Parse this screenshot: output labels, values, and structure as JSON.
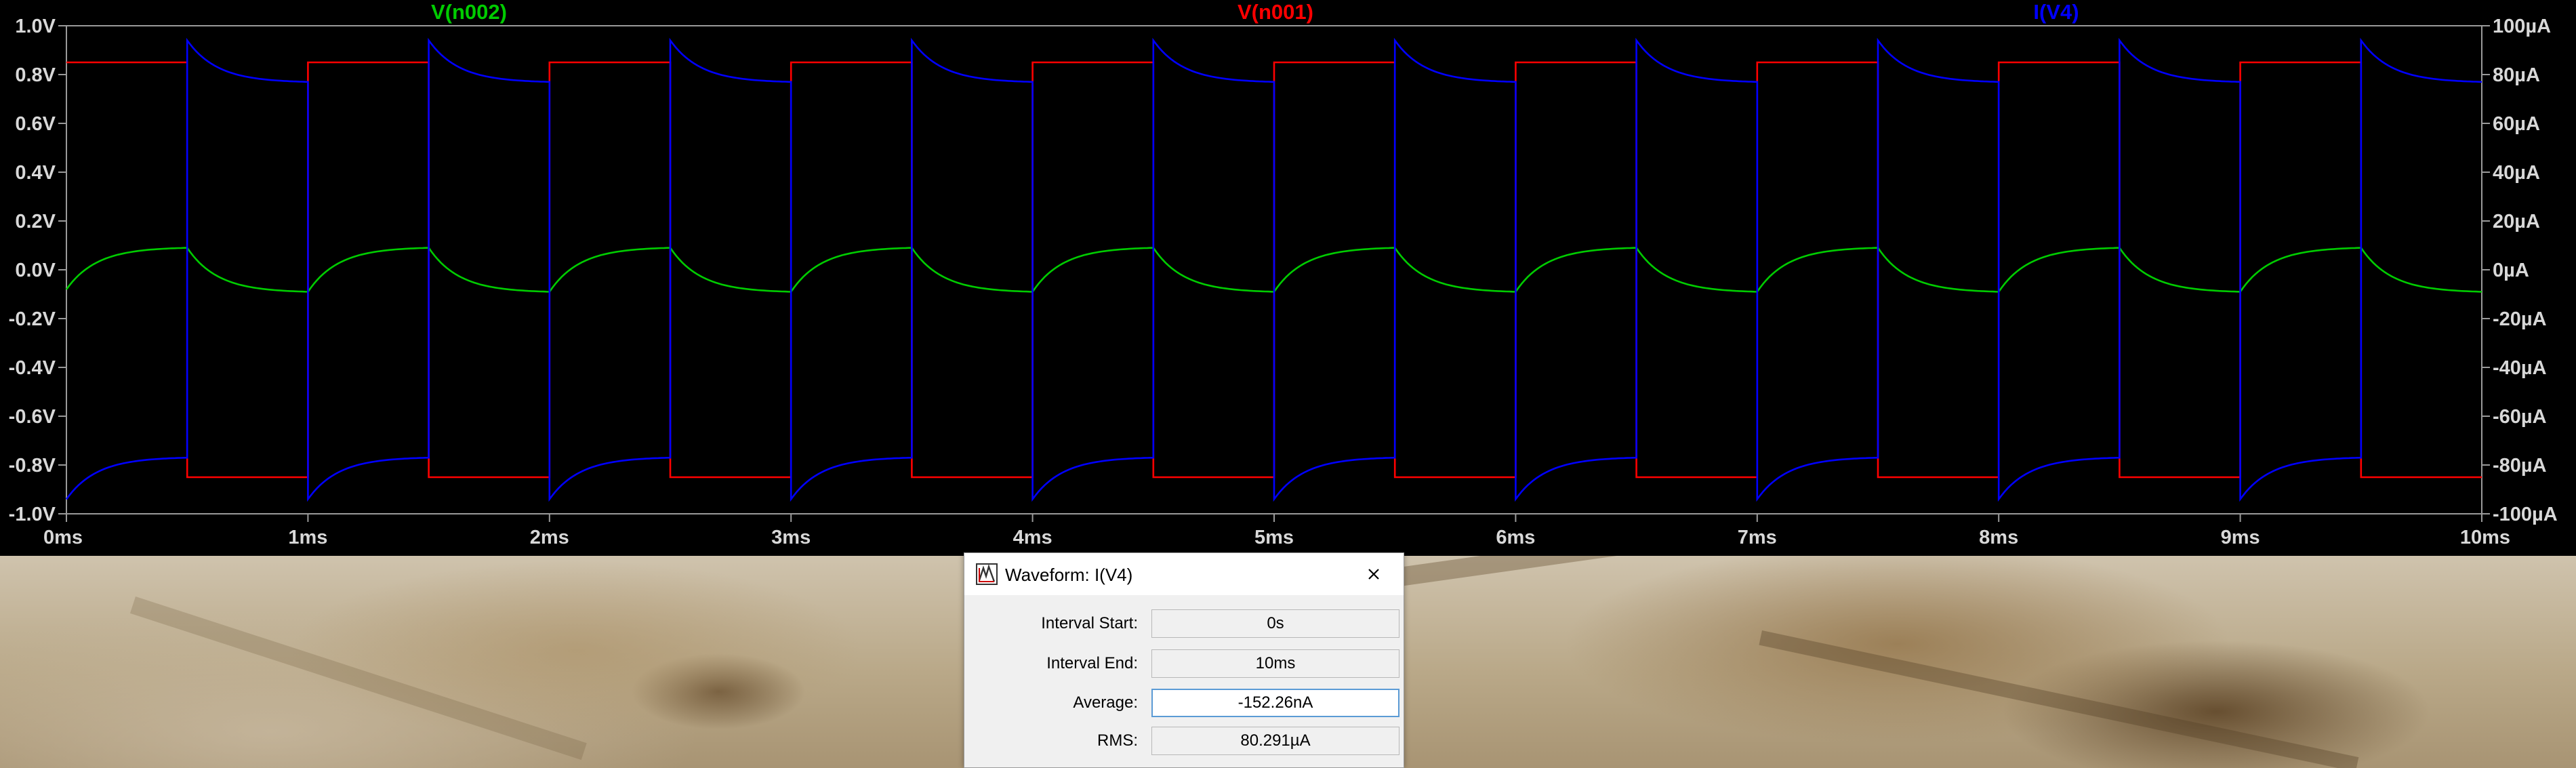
{
  "chart_data": {
    "type": "line",
    "x_axis": {
      "range_ms": [
        0,
        10
      ],
      "tick_labels": [
        "0ms",
        "1ms",
        "2ms",
        "3ms",
        "4ms",
        "5ms",
        "6ms",
        "7ms",
        "8ms",
        "9ms",
        "10ms"
      ]
    },
    "y_left": {
      "range_V": [
        -1.0,
        1.0
      ],
      "tick_labels": [
        "1.0V",
        "0.8V",
        "0.6V",
        "0.4V",
        "0.2V",
        "0.0V",
        "-0.2V",
        "-0.4V",
        "-0.6V",
        "-0.8V",
        "-1.0V"
      ]
    },
    "y_right": {
      "range_uA": [
        -100,
        100
      ],
      "tick_labels": [
        "100µA",
        "80µA",
        "60µA",
        "40µA",
        "20µA",
        "0µA",
        "-20µA",
        "-40µA",
        "-60µA",
        "-80µA",
        "-100µA"
      ]
    },
    "grid": false,
    "series": [
      {
        "name": "V(n002)",
        "color": "#00cc00",
        "axis": "left",
        "shape": "rc-exponential",
        "x": [
          0,
          0.5,
          0.5,
          1.0,
          1.0,
          1.5,
          1.5,
          2.0,
          2.0,
          2.5,
          2.5,
          3.0,
          3.0,
          3.5,
          3.5,
          4.0,
          4.0,
          4.5,
          4.5,
          5.0,
          5.0,
          5.5,
          5.5,
          6.0,
          6.0,
          6.5,
          6.5,
          7.0,
          7.0,
          7.5,
          7.5,
          8.0,
          8.0,
          8.5,
          8.5,
          9.0,
          9.0,
          9.5,
          9.5,
          10.0
        ],
        "y": [
          -0.08,
          0.09,
          0.09,
          -0.09,
          -0.09,
          0.09,
          0.09,
          -0.09,
          -0.09,
          0.09,
          0.09,
          -0.09,
          -0.09,
          0.09,
          0.09,
          -0.09,
          -0.09,
          0.09,
          0.09,
          -0.09,
          -0.09,
          0.09,
          0.09,
          -0.09,
          -0.09,
          0.09,
          0.09,
          -0.09,
          -0.09,
          0.09,
          0.09,
          -0.09,
          -0.09,
          0.09,
          0.09,
          -0.09,
          -0.09,
          0.09,
          0.09,
          -0.09
        ]
      },
      {
        "name": "V(n001)",
        "color": "#ff0000",
        "axis": "left",
        "shape": "square",
        "x": [
          0,
          0.5,
          0.5,
          1.0,
          1.0,
          1.5,
          1.5,
          2.0,
          2.0,
          2.5,
          2.5,
          3.0,
          3.0,
          3.5,
          3.5,
          4.0,
          4.0,
          4.5,
          4.5,
          5.0,
          5.0,
          5.5,
          5.5,
          6.0,
          6.0,
          6.5,
          6.5,
          7.0,
          7.0,
          7.5,
          7.5,
          8.0,
          8.0,
          8.5,
          8.5,
          9.0,
          9.0,
          9.5,
          9.5,
          10.0
        ],
        "y": [
          0.85,
          0.85,
          -0.85,
          -0.85,
          0.85,
          0.85,
          -0.85,
          -0.85,
          0.85,
          0.85,
          -0.85,
          -0.85,
          0.85,
          0.85,
          -0.85,
          -0.85,
          0.85,
          0.85,
          -0.85,
          -0.85,
          0.85,
          0.85,
          -0.85,
          -0.85,
          0.85,
          0.85,
          -0.85,
          -0.85,
          0.85,
          0.85,
          -0.85,
          -0.85,
          0.85,
          0.85,
          -0.85,
          -0.85,
          0.85,
          0.85,
          -0.85,
          -0.85
        ]
      },
      {
        "name": "I(V4)",
        "color": "#0000ff",
        "axis": "right",
        "shape": "rc-exponential",
        "x": [
          0,
          0.5,
          0.5,
          1.0,
          1.0,
          1.5,
          1.5,
          2.0,
          2.0,
          2.5,
          2.5,
          3.0,
          3.0,
          3.5,
          3.5,
          4.0,
          4.0,
          4.5,
          4.5,
          5.0,
          5.0,
          5.5,
          5.5,
          6.0,
          6.0,
          6.5,
          6.5,
          7.0,
          7.0,
          7.5,
          7.5,
          8.0,
          8.0,
          8.5,
          8.5,
          9.0,
          9.0,
          9.5,
          9.5,
          10.0
        ],
        "y": [
          -94,
          -77,
          94,
          77,
          -94,
          -77,
          94,
          77,
          -94,
          -77,
          94,
          77,
          -94,
          -77,
          94,
          77,
          -94,
          -77,
          94,
          77,
          -94,
          -77,
          94,
          77,
          -94,
          -77,
          94,
          77,
          -94,
          -77,
          94,
          77,
          -94,
          -77,
          94,
          77,
          -94,
          -77,
          94,
          77
        ]
      }
    ]
  },
  "dialog": {
    "title": "Waveform: I(V4)",
    "rows": [
      {
        "label": "Interval Start:",
        "value": "0s"
      },
      {
        "label": "Interval End:",
        "value": "10ms"
      },
      {
        "label": "Average:",
        "value": "-152.26nA"
      },
      {
        "label": "RMS:",
        "value": "80.291µA"
      }
    ]
  }
}
